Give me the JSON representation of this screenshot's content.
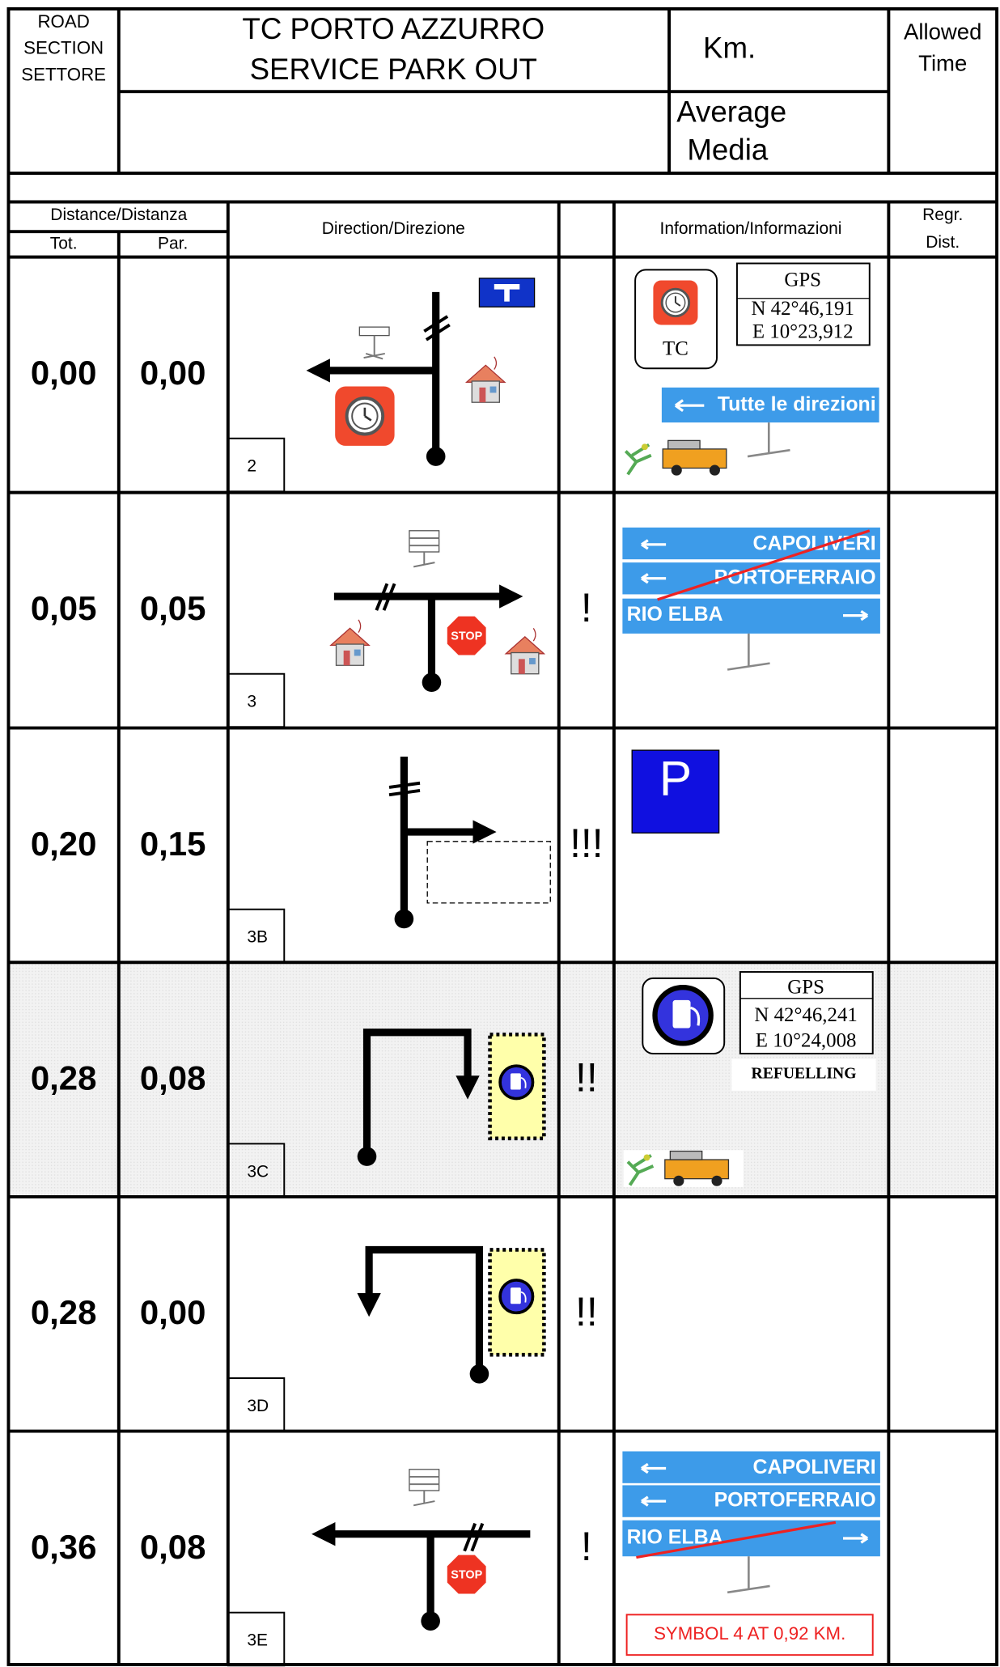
{
  "header": {
    "section_label": [
      "ROAD",
      "SECTION",
      "SETTORE"
    ],
    "title": [
      "TC PORTO AZZURRO",
      "SERVICE PARK OUT"
    ],
    "km_label": "Km.",
    "allowed_time": [
      "Allowed",
      "Time"
    ],
    "average": [
      "Average",
      "Media"
    ]
  },
  "columns": {
    "distance": "Distance/Distanza",
    "tot": "Tot.",
    "par": "Par.",
    "direction": "Direction/Direzione",
    "information": "Information/Informazioni",
    "regr": [
      "Regr.",
      "Dist."
    ]
  },
  "rows": [
    {
      "tot": "0,00",
      "par": "0,00",
      "number": "2",
      "info": {
        "gps": [
          "GPS",
          "N 42°46,191",
          "E 10°23,912"
        ],
        "tc": "TC",
        "sign": "Tutte le direzioni"
      }
    },
    {
      "tot": "0,05",
      "par": "0,05",
      "number": "3",
      "warning": "!",
      "stop": "STOP",
      "info": {
        "signs": [
          "CAPOLIVERI",
          "PORTOFERRAIO",
          "RIO ELBA"
        ]
      }
    },
    {
      "tot": "0,20",
      "par": "0,15",
      "number": "3B",
      "warning": "!!!",
      "info": {
        "parking": "P"
      }
    },
    {
      "tot": "0,28",
      "par": "0,08",
      "number": "3C",
      "warning": "!!",
      "info": {
        "gps": [
          "GPS",
          "N 42°46,241",
          "E 10°24,008"
        ],
        "note": "REFUELLING"
      }
    },
    {
      "tot": "0,28",
      "par": "0,00",
      "number": "3D",
      "warning": "!!"
    },
    {
      "tot": "0,36",
      "par": "0,08",
      "number": "3E",
      "warning": "!",
      "stop": "STOP",
      "info": {
        "signs": [
          "CAPOLIVERI",
          "PORTOFERRAIO",
          "RIO ELBA"
        ],
        "note": "SYMBOL 4 AT 0,92 KM."
      }
    }
  ]
}
